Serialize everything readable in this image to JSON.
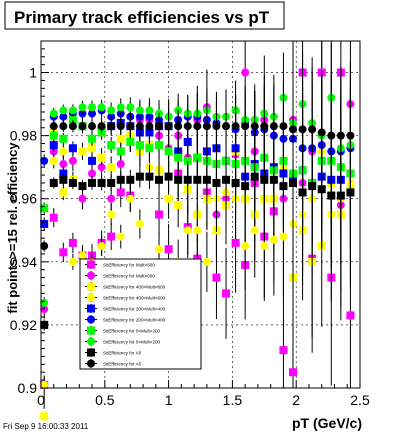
{
  "chart_data": {
    "type": "scatter",
    "title": "Primary track efficiencies vs pT",
    "xlabel": "pT (GeV/c)",
    "ylabel": "fit points>=15 rel. efficiency",
    "xlim": [
      0,
      2.5
    ],
    "ylim": [
      0.9,
      1.01
    ],
    "xticks": [
      "0",
      "0.5",
      "1",
      "1.5",
      "2",
      "2.5"
    ],
    "yticks": [
      "0.9",
      "0.92",
      "0.94",
      "0.96",
      "0.98",
      "1"
    ],
    "grid": true,
    "legend_position": "lower-center",
    "footer": "Fri Sep  9 16:00:33 2011",
    "x": [
      0.025,
      0.1,
      0.175,
      0.25,
      0.325,
      0.4,
      0.475,
      0.55,
      0.625,
      0.7,
      0.775,
      0.85,
      0.925,
      1.0,
      1.075,
      1.15,
      1.225,
      1.3,
      1.375,
      1.45,
      1.525,
      1.6,
      1.675,
      1.75,
      1.825,
      1.9,
      1.975,
      2.05,
      2.125,
      2.2,
      2.275,
      2.35,
      2.425
    ],
    "series": [
      {
        "name": "StiEfficiency  for Mult>600",
        "marker": "square",
        "color": "#ff00ff",
        "err_scale": 1.0,
        "values": [
          0.901,
          0.954,
          0.943,
          0.946,
          0.942,
          0.942,
          0.946,
          0.948,
          0.962,
          0.961,
          0.976,
          0.977,
          0.955,
          0.944,
          0.968,
          0.951,
          0.941,
          0.962,
          0.935,
          0.93,
          0.946,
          0.939,
          0.965,
          0.948,
          0.956,
          0.912,
          0.905,
          1.0,
          0.941,
          1.0,
          0.935,
          1.0,
          0.923
        ]
      },
      {
        "name": "StiEfficiency  for Mult>600",
        "marker": "circle",
        "color": "#ff00ff",
        "err_scale": 1.0,
        "values": [
          0.925,
          0.975,
          0.971,
          0.972,
          0.96,
          0.968,
          0.97,
          0.96,
          0.971,
          0.98,
          0.985,
          0.985,
          0.98,
          0.976,
          0.98,
          0.973,
          0.985,
          0.989,
          0.955,
          0.96,
          0.974,
          1.0,
          0.975,
          0.985,
          0.97,
          0.96,
          0.985,
          0.965,
          0.975,
          1.0,
          0.975,
          0.958,
          0.99
        ]
      },
      {
        "name": "StiEfficiency  for 400<Mult<600",
        "marker": "square",
        "color": "#ffff00",
        "err_scale": 0.8,
        "values": [
          0.891,
          0.981,
          0.962,
          0.966,
          0.975,
          0.976,
          0.973,
          0.97,
          0.979,
          0.98,
          0.975,
          0.977,
          0.969,
          0.96,
          0.958,
          0.963,
          0.955,
          0.96,
          0.95,
          0.958,
          0.975,
          0.96,
          0.955,
          0.96,
          0.96,
          0.969,
          0.935,
          0.95,
          0.94,
          0.945,
          0.965,
          0.955,
          0.963
        ]
      },
      {
        "name": "StiEfficiency  for 400<Mult<600",
        "marker": "circle",
        "color": "#ffff00",
        "err_scale": 0.8,
        "values": [
          0.901,
          0.972,
          0.975,
          0.94,
          0.942,
          0.94,
          0.945,
          0.955,
          0.948,
          0.96,
          0.952,
          0.97,
          0.944,
          0.975,
          0.94,
          0.95,
          0.95,
          0.94,
          0.96,
          0.962,
          0.96,
          0.945,
          0.95,
          0.945,
          0.947,
          0.948,
          0.952,
          0.955,
          0.96,
          0.975,
          0.955,
          0.96,
          0.965
        ]
      },
      {
        "name": "StiEfficiency  for 200<Mult<400",
        "marker": "square",
        "color": "#0000ff",
        "err_scale": 0.7,
        "values": [
          0.952,
          0.977,
          0.968,
          0.976,
          0.983,
          0.972,
          0.982,
          0.983,
          0.984,
          0.983,
          0.981,
          0.981,
          0.983,
          0.983,
          0.975,
          0.978,
          0.973,
          0.975,
          0.976,
          0.972,
          0.976,
          0.967,
          0.971,
          0.968,
          0.97,
          0.968,
          0.967,
          0.969,
          0.965,
          0.967,
          0.966,
          0.966,
          0.968
        ]
      },
      {
        "name": "StiEfficiency  for 200<Mult<400",
        "marker": "circle",
        "color": "#0000ff",
        "err_scale": 0.7,
        "values": [
          0.972,
          0.986,
          0.986,
          0.987,
          0.987,
          0.987,
          0.988,
          0.986,
          0.987,
          0.986,
          0.986,
          0.986,
          0.985,
          0.986,
          0.985,
          0.986,
          0.986,
          0.985,
          0.984,
          0.983,
          0.982,
          0.984,
          0.981,
          0.982,
          0.98,
          0.979,
          0.979,
          0.976,
          0.976,
          0.977,
          0.975,
          0.975,
          0.976
        ]
      },
      {
        "name": "StiEfficiency  for 0<Mult<200",
        "marker": "square",
        "color": "#00ff00",
        "err_scale": 0.6,
        "values": [
          0.957,
          0.98,
          0.979,
          0.985,
          0.983,
          0.979,
          0.981,
          0.977,
          0.975,
          0.978,
          0.977,
          0.976,
          0.977,
          0.975,
          0.973,
          0.972,
          0.973,
          0.972,
          0.971,
          0.972,
          0.971,
          0.972,
          0.97,
          0.973,
          0.969,
          0.972,
          0.968,
          0.969,
          0.965,
          0.972,
          0.972,
          0.97,
          0.968
        ]
      },
      {
        "name": "StiEfficiency  for 0<Mult<200",
        "marker": "circle",
        "color": "#00ff00",
        "err_scale": 0.6,
        "values": [
          0.927,
          0.987,
          0.988,
          0.988,
          0.989,
          0.989,
          0.989,
          0.988,
          0.989,
          0.989,
          0.988,
          0.988,
          0.987,
          0.986,
          0.988,
          0.987,
          0.987,
          0.988,
          0.986,
          0.986,
          0.988,
          0.985,
          0.985,
          0.987,
          0.986,
          0.992,
          0.984,
          0.99,
          0.984,
          0.98,
          0.992,
          0.976,
          0.977
        ]
      },
      {
        "name": "StiEfficiency  for All",
        "marker": "square",
        "color": "#000000",
        "err_scale": 0.6,
        "values": [
          0.92,
          0.965,
          0.966,
          0.965,
          0.964,
          0.965,
          0.965,
          0.965,
          0.966,
          0.966,
          0.967,
          0.967,
          0.966,
          0.967,
          0.966,
          0.966,
          0.966,
          0.966,
          0.965,
          0.966,
          0.965,
          0.964,
          0.967,
          0.966,
          0.966,
          0.964,
          0.965,
          0.962,
          0.964,
          0.963,
          0.961,
          0.961,
          0.962
        ]
      },
      {
        "name": "StiEfficiency  for All",
        "marker": "circle",
        "color": "#000000",
        "err_scale": 0.6,
        "values": [
          0.945,
          0.983,
          0.983,
          0.983,
          0.983,
          0.983,
          0.983,
          0.983,
          0.983,
          0.983,
          0.983,
          0.983,
          0.983,
          0.983,
          0.983,
          0.983,
          0.983,
          0.983,
          0.983,
          0.983,
          0.983,
          0.983,
          0.983,
          0.983,
          0.983,
          0.983,
          0.982,
          0.982,
          0.982,
          0.981,
          0.98,
          0.98,
          0.98
        ]
      }
    ]
  }
}
